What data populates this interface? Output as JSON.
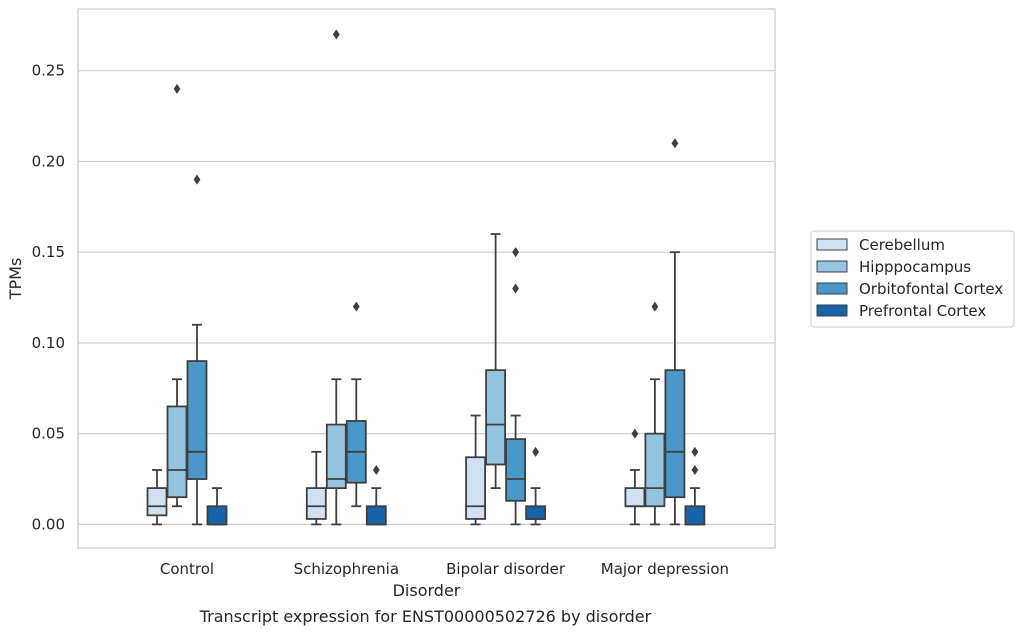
{
  "chart_data": {
    "type": "box",
    "caption": "Transcript expression for ENST00000502726 by disorder",
    "xlabel": "Disorder",
    "ylabel": "TPMs",
    "ylim": [
      -0.013,
      0.284
    ],
    "yticks": [
      "0.00",
      "0.05",
      "0.10",
      "0.15",
      "0.20",
      "0.25"
    ],
    "ytick_values": [
      0,
      0.05,
      0.1,
      0.15,
      0.2,
      0.25
    ],
    "grid": true,
    "legend_position": "right",
    "categories": [
      "Control",
      "Schizophrenia",
      "Bipolar disorder",
      "Major depression"
    ],
    "series": [
      {
        "name": "Cerebellum",
        "color": "#d0e1f2",
        "boxes": [
          {
            "whislo": 0.0,
            "q1": 0.005,
            "med": 0.01,
            "q3": 0.02,
            "whishi": 0.03,
            "fliers": []
          },
          {
            "whislo": 0.0,
            "q1": 0.003,
            "med": 0.01,
            "q3": 0.02,
            "whishi": 0.04,
            "fliers": []
          },
          {
            "whislo": 0.0,
            "q1": 0.003,
            "med": 0.01,
            "q3": 0.037,
            "whishi": 0.06,
            "fliers": []
          },
          {
            "whislo": 0.0,
            "q1": 0.01,
            "med": 0.01,
            "q3": 0.02,
            "whishi": 0.03,
            "fliers": [
              0.05
            ]
          }
        ]
      },
      {
        "name": "Hipppocampus",
        "color": "#94c4df",
        "boxes": [
          {
            "whislo": 0.01,
            "q1": 0.015,
            "med": 0.03,
            "q3": 0.065,
            "whishi": 0.08,
            "fliers": [
              0.24
            ]
          },
          {
            "whislo": 0.0,
            "q1": 0.02,
            "med": 0.025,
            "q3": 0.055,
            "whishi": 0.08,
            "fliers": [
              0.27
            ]
          },
          {
            "whislo": 0.02,
            "q1": 0.033,
            "med": 0.055,
            "q3": 0.085,
            "whishi": 0.16,
            "fliers": []
          },
          {
            "whislo": 0.0,
            "q1": 0.01,
            "med": 0.02,
            "q3": 0.05,
            "whishi": 0.08,
            "fliers": [
              0.12
            ]
          }
        ]
      },
      {
        "name": "Orbitofontal Cortex",
        "color": "#4a98c9",
        "boxes": [
          {
            "whislo": 0.0,
            "q1": 0.025,
            "med": 0.04,
            "q3": 0.09,
            "whishi": 0.11,
            "fliers": [
              0.19
            ]
          },
          {
            "whislo": 0.01,
            "q1": 0.023,
            "med": 0.04,
            "q3": 0.057,
            "whishi": 0.08,
            "fliers": [
              0.12
            ]
          },
          {
            "whislo": 0.0,
            "q1": 0.013,
            "med": 0.025,
            "q3": 0.047,
            "whishi": 0.06,
            "fliers": [
              0.13,
              0.15
            ]
          },
          {
            "whislo": 0.0,
            "q1": 0.015,
            "med": 0.04,
            "q3": 0.085,
            "whishi": 0.15,
            "fliers": [
              0.21
            ]
          }
        ]
      },
      {
        "name": "Prefrontal Cortex",
        "color": "#1764ab",
        "boxes": [
          {
            "whislo": 0.0,
            "q1": 0.0,
            "med": 0.0,
            "q3": 0.01,
            "whishi": 0.02,
            "fliers": []
          },
          {
            "whislo": 0.0,
            "q1": 0.0,
            "med": 0.0,
            "q3": 0.01,
            "whishi": 0.02,
            "fliers": [
              0.03
            ]
          },
          {
            "whislo": 0.0,
            "q1": 0.003,
            "med": 0.003,
            "q3": 0.01,
            "whishi": 0.02,
            "fliers": [
              0.04
            ]
          },
          {
            "whislo": 0.0,
            "q1": 0.0,
            "med": 0.0,
            "q3": 0.01,
            "whishi": 0.02,
            "fliers": [
              0.03,
              0.04
            ]
          }
        ]
      }
    ]
  }
}
